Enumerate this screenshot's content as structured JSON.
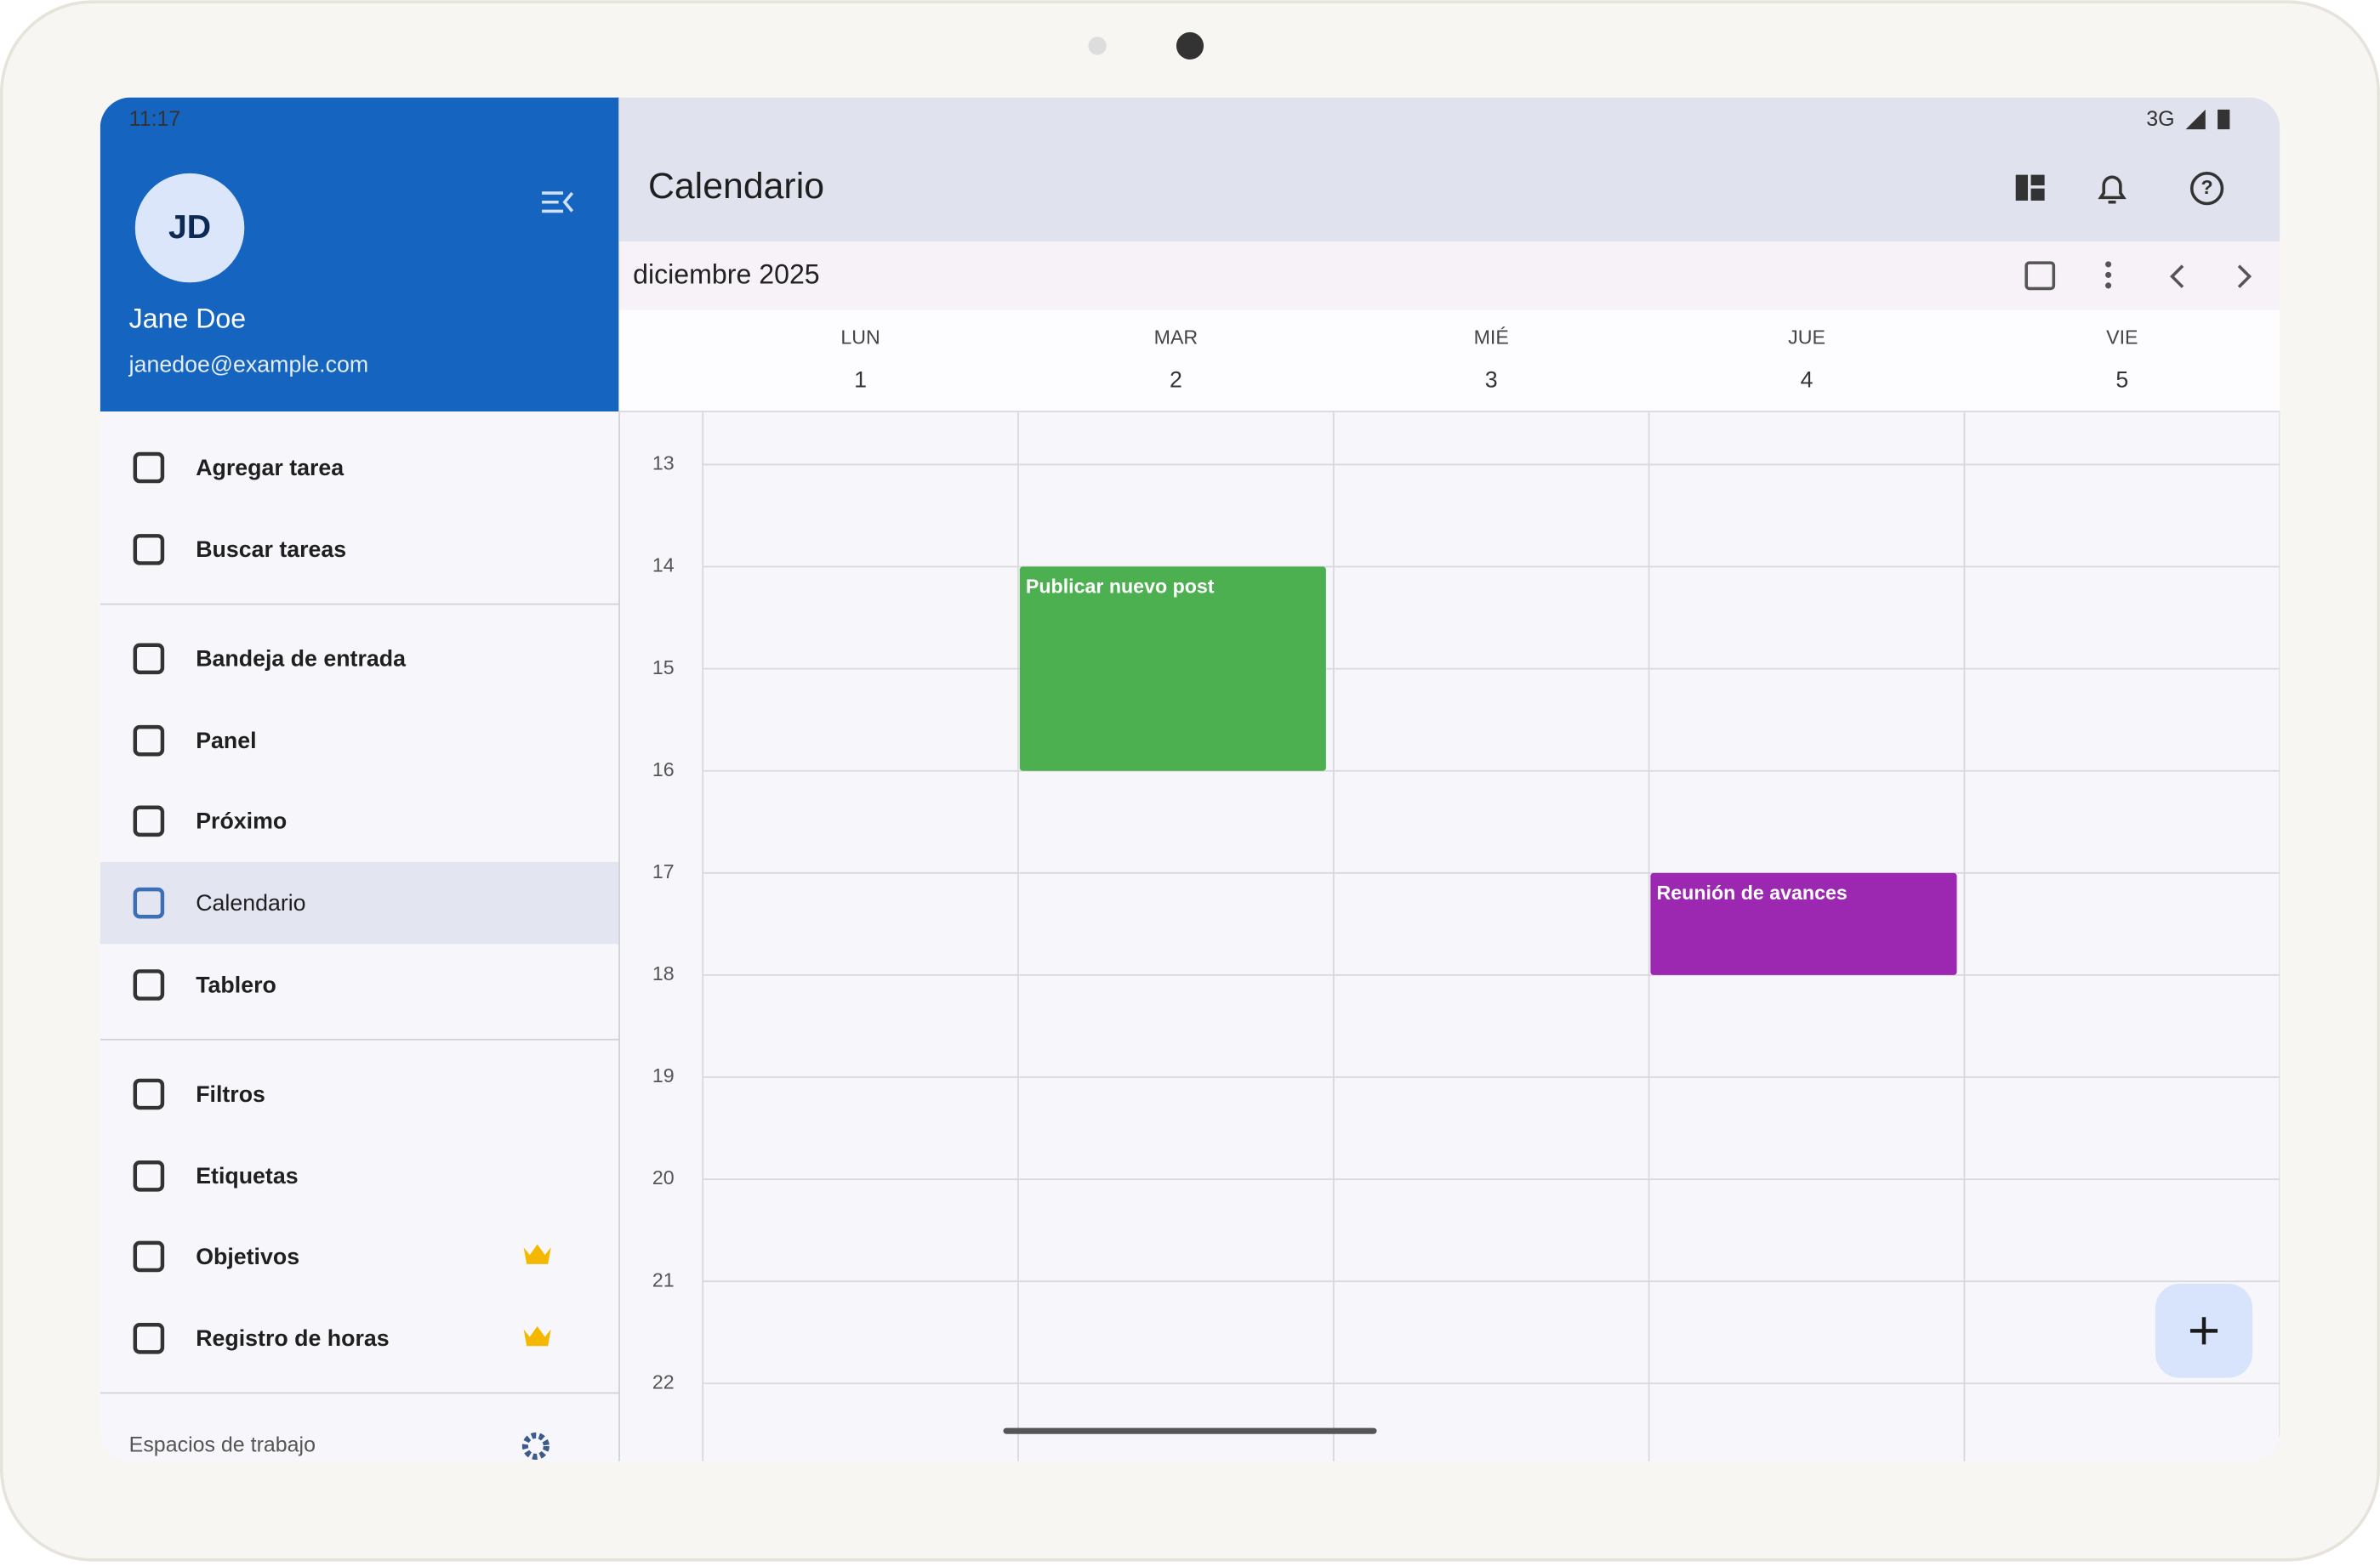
{
  "status_bar": {
    "time": "11:17",
    "network": "3G"
  },
  "user": {
    "initials": "JD",
    "name": "Jane Doe",
    "email": "janedoe@example.com"
  },
  "menu": {
    "top": [
      "Agregar tarea",
      "Buscar tareas"
    ],
    "views": [
      "Bandeja de entrada",
      "Panel",
      "Próximo",
      "Calendario",
      "Tablero"
    ],
    "tools": [
      "Filtros",
      "Etiquetas",
      "Objetivos",
      "Registro de horas"
    ],
    "workspaces": "Espacios de trabajo"
  },
  "page": {
    "title": "Calendario",
    "month": "diciembre 2025"
  },
  "calendar": {
    "days": [
      {
        "name": "LUN",
        "date": 1
      },
      {
        "name": "MAR",
        "date": 2
      },
      {
        "name": "MIÉ",
        "date": 3
      },
      {
        "name": "JUE",
        "date": 4
      },
      {
        "name": "VIE",
        "date": 5
      }
    ],
    "hours": [
      13,
      14,
      15,
      16,
      17,
      18,
      19,
      20,
      21,
      22
    ],
    "events": [
      {
        "title": "Publicar nuevo post",
        "day": 1,
        "start": 14,
        "end": 16,
        "color": "#4caf50"
      },
      {
        "title": "Reunión de avances",
        "day": 3,
        "start": 17,
        "end": 18,
        "color": "#9c27b0"
      }
    ]
  }
}
